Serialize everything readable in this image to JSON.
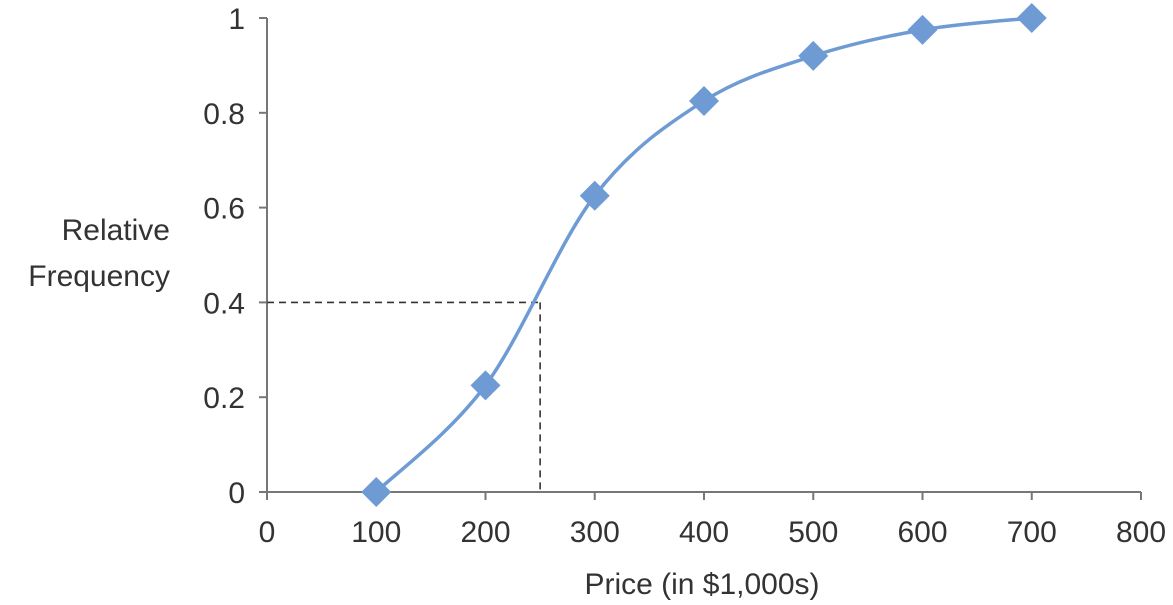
{
  "chart_data": {
    "type": "line",
    "title": "",
    "xlabel": "Price (in $1,000s)",
    "ylabel": [
      "Relative",
      "Frequency"
    ],
    "xlim": [
      0,
      800
    ],
    "ylim": [
      0,
      1
    ],
    "x_ticks": [
      0,
      100,
      200,
      300,
      400,
      500,
      600,
      700,
      800
    ],
    "x_tick_labels": [
      "0",
      "100",
      "200",
      "300",
      "400",
      "500",
      "600",
      "700",
      "800"
    ],
    "y_ticks": [
      0,
      0.2,
      0.4,
      0.6,
      0.8,
      1
    ],
    "y_tick_labels": [
      "0",
      "0.2",
      "0.4",
      "0.6",
      "0.8",
      "1"
    ],
    "grid": false,
    "legend": "none",
    "series": [
      {
        "x": [
          100,
          200,
          300,
          400,
          500,
          600,
          700
        ],
        "y": [
          0,
          0.225,
          0.625,
          0.825,
          0.92,
          0.975,
          1
        ],
        "marker": "diamond",
        "color": "#6f9bd4",
        "smooth": true
      }
    ],
    "annotations": [
      {
        "type": "dashed-reference",
        "x": 250,
        "y": 0.4,
        "color": "#333333"
      }
    ],
    "axis_color": "#777777"
  }
}
